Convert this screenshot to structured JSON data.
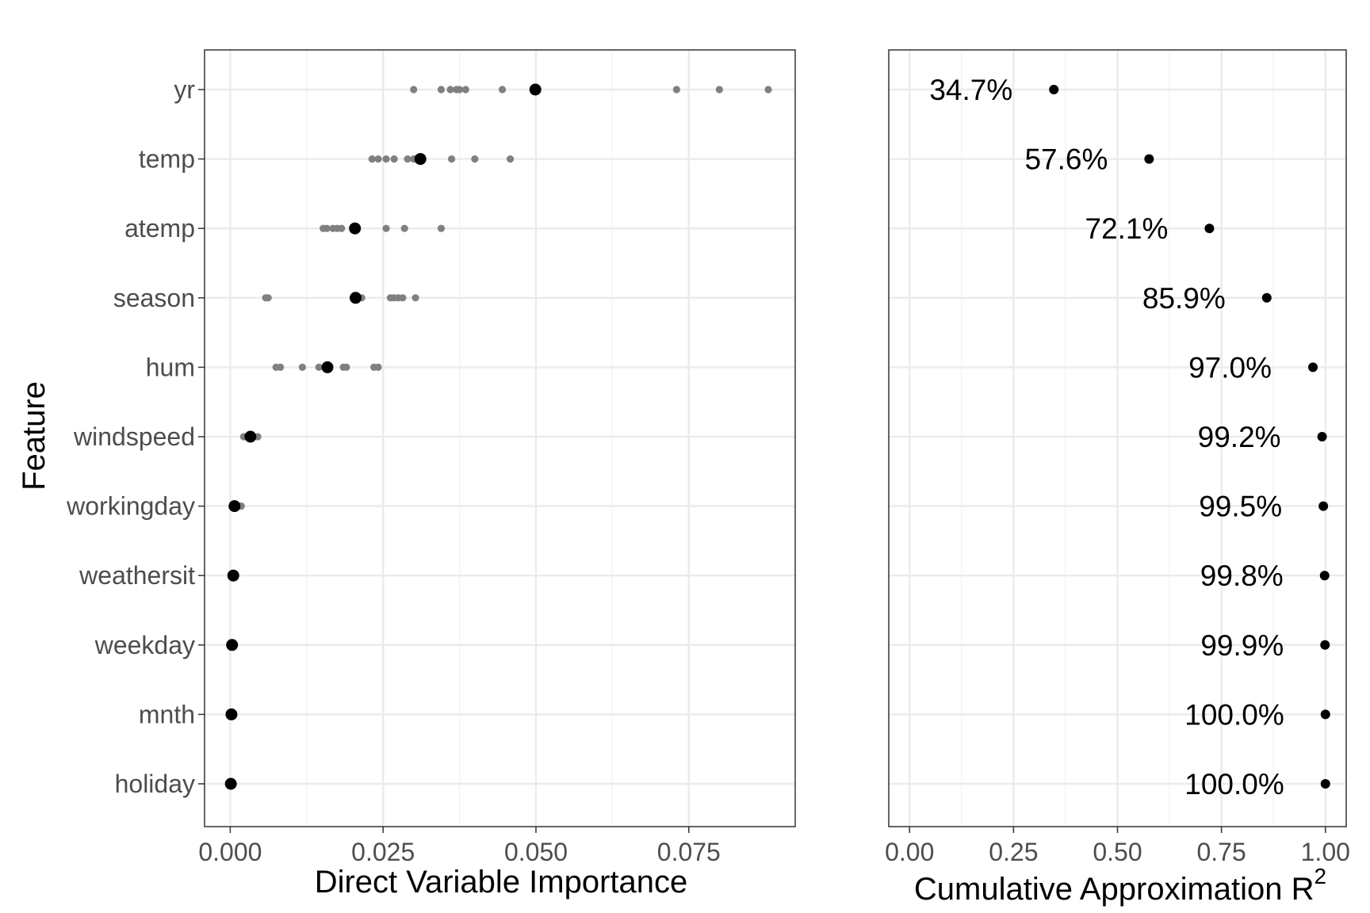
{
  "chart_data": [
    {
      "type": "scatter",
      "xlabel": "Direct Variable Importance",
      "ylabel": "Feature",
      "xlim": [
        -0.0042,
        0.0924
      ],
      "x_ticks": [
        "0.000",
        "0.025",
        "0.050",
        "0.075"
      ],
      "x_tick_values": [
        0,
        0.025,
        0.05,
        0.075
      ],
      "grid": true,
      "categories": [
        "yr",
        "temp",
        "atemp",
        "season",
        "hum",
        "windspeed",
        "workingday",
        "weathersit",
        "weekday",
        "mnth",
        "holiday"
      ],
      "series": [
        {
          "role": "replicates",
          "color": "#808080",
          "points": [
            {
              "feature": "yr",
              "values": [
                0.03,
                0.0345,
                0.036,
                0.037,
                0.0375,
                0.0385,
                0.0445,
                0.073,
                0.08,
                0.088
              ]
            },
            {
              "feature": "temp",
              "values": [
                0.0232,
                0.0242,
                0.0255,
                0.0268,
                0.029,
                0.03,
                0.0302,
                0.0362,
                0.04,
                0.0458
              ]
            },
            {
              "feature": "atemp",
              "values": [
                0.0152,
                0.0158,
                0.0168,
                0.0175,
                0.0182,
                0.0202,
                0.0255,
                0.0285,
                0.0345
              ]
            },
            {
              "feature": "season",
              "values": [
                0.0058,
                0.0062,
                0.0215,
                0.0262,
                0.0268,
                0.0275,
                0.0282,
                0.0303
              ]
            },
            {
              "feature": "hum",
              "values": [
                0.0075,
                0.0082,
                0.0118,
                0.0145,
                0.0185,
                0.019,
                0.0235,
                0.0242
              ]
            },
            {
              "feature": "windspeed",
              "values": [
                0.0022,
                0.0028,
                0.0038,
                0.0045
              ]
            },
            {
              "feature": "workingday",
              "values": [
                0.0008,
                0.0015,
                0.0018
              ]
            },
            {
              "feature": "weathersit",
              "values": []
            },
            {
              "feature": "weekday",
              "values": []
            },
            {
              "feature": "mnth",
              "values": []
            },
            {
              "feature": "holiday",
              "values": []
            }
          ]
        },
        {
          "role": "mean",
          "color": "#000000",
          "values": [
            0.0499,
            0.0311,
            0.0204,
            0.0205,
            0.0159,
            0.0033,
            0.0007,
            0.0005,
            0.0003,
            0.0002,
            0.0001
          ]
        }
      ]
    },
    {
      "type": "scatter",
      "xlabel": "Cumulative Approximation R",
      "xlabel_superscript": "2",
      "xlim": [
        -0.05,
        1.05
      ],
      "x_ticks": [
        "0.00",
        "0.25",
        "0.50",
        "0.75",
        "1.00"
      ],
      "x_tick_values": [
        0,
        0.25,
        0.5,
        0.75,
        1.0
      ],
      "grid": true,
      "categories": [
        "yr",
        "temp",
        "atemp",
        "season",
        "hum",
        "windspeed",
        "workingday",
        "weathersit",
        "weekday",
        "mnth",
        "holiday"
      ],
      "values": [
        0.347,
        0.576,
        0.721,
        0.859,
        0.97,
        0.992,
        0.995,
        0.998,
        0.999,
        1.0,
        1.0
      ],
      "labels": [
        "34.7%",
        "57.6%",
        "72.1%",
        "85.9%",
        "97.0%",
        "99.2%",
        "99.5%",
        "99.8%",
        "99.9%",
        "100.0%",
        "100.0%"
      ],
      "color": "#000000"
    }
  ]
}
